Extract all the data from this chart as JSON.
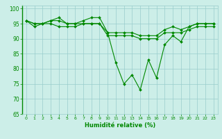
{
  "title": "",
  "xlabel": "Humidité relative (%)",
  "ylabel": "",
  "xlim": [
    -0.5,
    23.5
  ],
  "ylim": [
    65,
    101
  ],
  "yticks": [
    65,
    70,
    75,
    80,
    85,
    90,
    95,
    100
  ],
  "xticks": [
    0,
    1,
    2,
    3,
    4,
    5,
    6,
    7,
    8,
    9,
    10,
    11,
    12,
    13,
    14,
    15,
    16,
    17,
    18,
    19,
    20,
    21,
    22,
    23
  ],
  "bg_color": "#cceee8",
  "grid_color": "#99cccc",
  "line_color": "#008800",
  "lines": [
    [
      96,
      95,
      95,
      96,
      96,
      95,
      95,
      95,
      95,
      95,
      92,
      92,
      92,
      92,
      91,
      91,
      91,
      93,
      94,
      93,
      94,
      95,
      95,
      95
    ],
    [
      96,
      94,
      95,
      96,
      97,
      95,
      95,
      96,
      97,
      97,
      92,
      82,
      75,
      78,
      73,
      83,
      77,
      88,
      91,
      89,
      94,
      95,
      95,
      95
    ],
    [
      96,
      95,
      95,
      95,
      94,
      94,
      94,
      95,
      95,
      95,
      91,
      91,
      91,
      91,
      90,
      90,
      90,
      92,
      92,
      92,
      93,
      94,
      94,
      94
    ]
  ]
}
